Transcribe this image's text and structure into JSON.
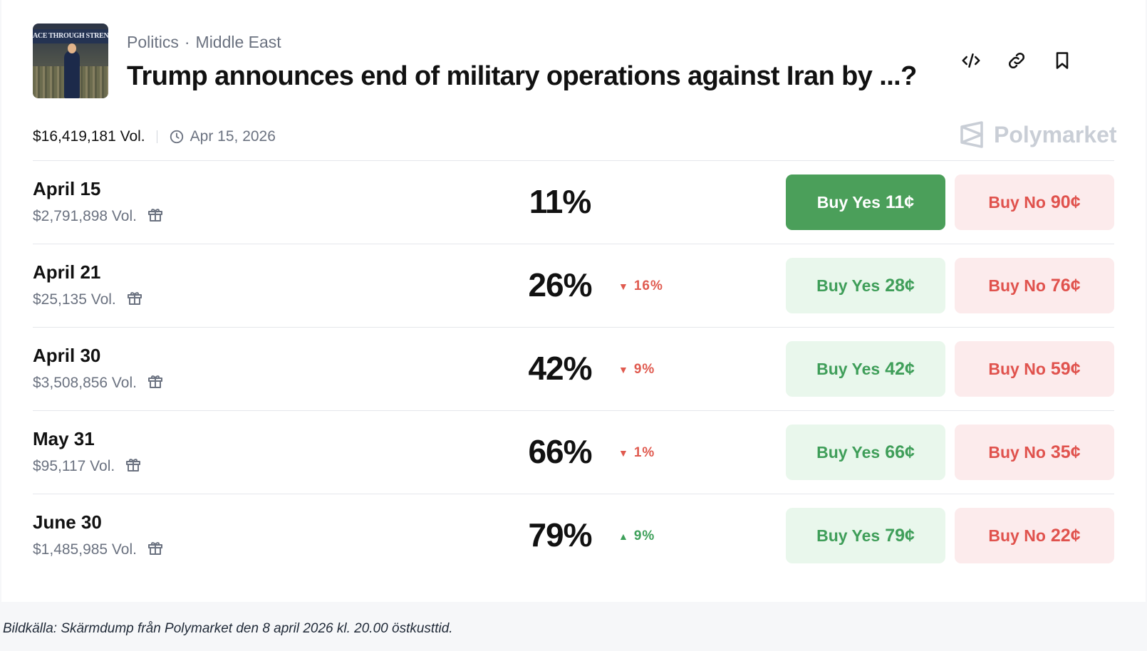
{
  "market": {
    "thumbnail_text": "ACE THROUGH STRENG",
    "breadcrumb": {
      "category": "Politics",
      "separator": "·",
      "subcategory": "Middle East"
    },
    "title": "Trump announces end of military operations against Iran by ...?",
    "total_volume": "$16,419,181 Vol.",
    "end_date": "Apr 15, 2026",
    "brand": "Polymarket"
  },
  "actions": {
    "embed_icon": "code-icon",
    "link_icon": "link-icon",
    "bookmark_icon": "bookmark-icon"
  },
  "outcomes": [
    {
      "label": "April 15",
      "volume": "$2,791,898 Vol.",
      "probability": "11%",
      "change": "",
      "change_dir": "",
      "yes_label": "Buy Yes",
      "yes_price": "11¢",
      "no_label": "Buy No",
      "no_price": "90¢",
      "selected": true
    },
    {
      "label": "April 21",
      "volume": "$25,135 Vol.",
      "probability": "26%",
      "change": "16%",
      "change_dir": "down",
      "yes_label": "Buy Yes",
      "yes_price": "28¢",
      "no_label": "Buy No",
      "no_price": "76¢",
      "selected": false
    },
    {
      "label": "April 30",
      "volume": "$3,508,856 Vol.",
      "probability": "42%",
      "change": "9%",
      "change_dir": "down",
      "yes_label": "Buy Yes",
      "yes_price": "42¢",
      "no_label": "Buy No",
      "no_price": "59¢",
      "selected": false
    },
    {
      "label": "May 31",
      "volume": "$95,117 Vol.",
      "probability": "66%",
      "change": "1%",
      "change_dir": "down",
      "yes_label": "Buy Yes",
      "yes_price": "66¢",
      "no_label": "Buy No",
      "no_price": "35¢",
      "selected": false
    },
    {
      "label": "June 30",
      "volume": "$1,485,985 Vol.",
      "probability": "79%",
      "change": "9%",
      "change_dir": "up",
      "yes_label": "Buy Yes",
      "yes_price": "79¢",
      "no_label": "Buy No",
      "no_price": "22¢",
      "selected": false
    }
  ],
  "colors": {
    "yes_active": "#4b9f5a",
    "yes": "#3f9e59",
    "no": "#e0524d",
    "up": "#3ea05a",
    "down": "#e05a4f"
  },
  "caption": "Bildkälla: Skärmdump från Polymarket den 8 april 2026 kl. 20.00 östkusttid."
}
